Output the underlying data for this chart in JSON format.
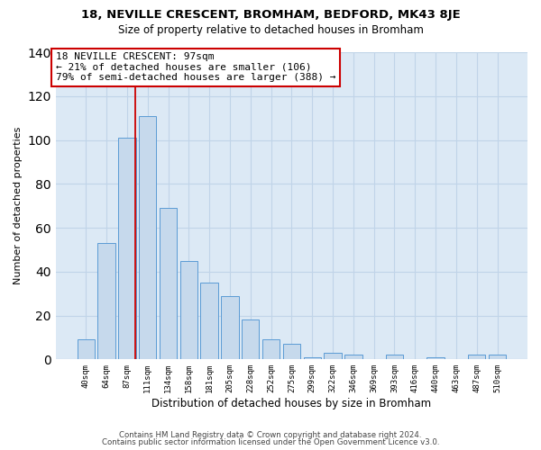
{
  "title": "18, NEVILLE CRESCENT, BROMHAM, BEDFORD, MK43 8JE",
  "subtitle": "Size of property relative to detached houses in Bromham",
  "xlabel": "Distribution of detached houses by size in Bromham",
  "ylabel": "Number of detached properties",
  "bar_labels": [
    "40sqm",
    "64sqm",
    "87sqm",
    "111sqm",
    "134sqm",
    "158sqm",
    "181sqm",
    "205sqm",
    "228sqm",
    "252sqm",
    "275sqm",
    "299sqm",
    "322sqm",
    "346sqm",
    "369sqm",
    "393sqm",
    "416sqm",
    "440sqm",
    "463sqm",
    "487sqm",
    "510sqm"
  ],
  "bar_values": [
    9,
    53,
    101,
    111,
    69,
    45,
    35,
    29,
    18,
    9,
    7,
    1,
    3,
    2,
    0,
    2,
    0,
    1,
    0,
    2,
    2
  ],
  "bar_color": "#c6d9ec",
  "bar_edge_color": "#5b9bd5",
  "annotation_line1": "18 NEVILLE CRESCENT: 97sqm",
  "annotation_line2": "← 21% of detached houses are smaller (106)",
  "annotation_line3": "79% of semi-detached houses are larger (388) →",
  "annotation_box_color": "#ffffff",
  "annotation_box_edge": "#cc0000",
  "vline_color": "#cc0000",
  "vline_x": 2.42,
  "ylim": [
    0,
    140
  ],
  "yticks": [
    0,
    20,
    40,
    60,
    80,
    100,
    120,
    140
  ],
  "footer1": "Contains HM Land Registry data © Crown copyright and database right 2024.",
  "footer2": "Contains public sector information licensed under the Open Government Licence v3.0.",
  "bg_color": "#ffffff",
  "plot_bg_color": "#dce9f5",
  "grid_color": "#c0d4e8"
}
